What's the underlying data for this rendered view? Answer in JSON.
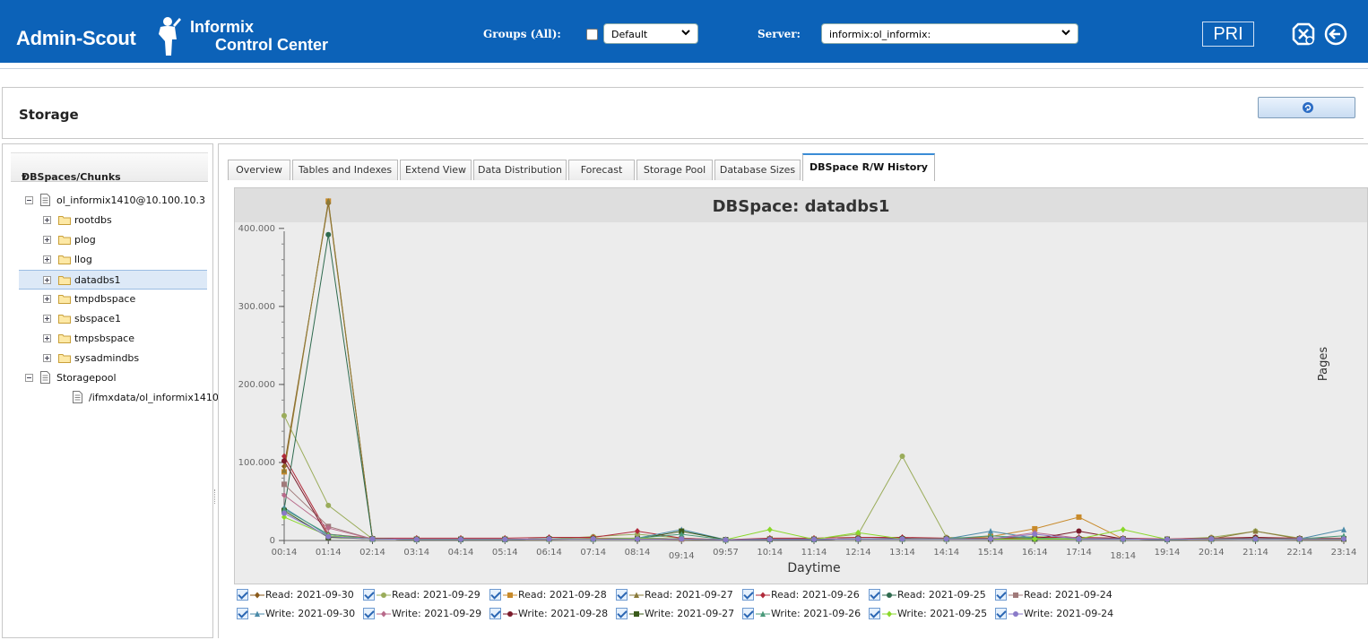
{
  "header": {
    "brand": "Admin-Scout",
    "product_line1": "Informix",
    "product_line2": "Control Center",
    "groups_label": "Groups (All):",
    "groups_value": "Default",
    "server_label": "Server:",
    "server_value": "informix:ol_informix:",
    "role_badge": "PRI",
    "accent_color": "#0c62b8"
  },
  "page": {
    "title": "Storage"
  },
  "tree": {
    "header": "DBSpaces/Chunks",
    "items": [
      {
        "label": "ol_informix1410@10.100.10.3",
        "level": 0,
        "toggle": "minus",
        "icon": "document-icon"
      },
      {
        "label": "rootdbs",
        "level": 1,
        "toggle": "plus",
        "icon": "folder-icon"
      },
      {
        "label": "plog",
        "level": 1,
        "toggle": "plus",
        "icon": "folder-icon"
      },
      {
        "label": "llog",
        "level": 1,
        "toggle": "plus",
        "icon": "folder-icon"
      },
      {
        "label": "datadbs1",
        "level": 1,
        "toggle": "plus",
        "icon": "folder-icon",
        "selected": true
      },
      {
        "label": "tmpdbspace",
        "level": 1,
        "toggle": "plus",
        "icon": "folder-icon"
      },
      {
        "label": "sbspace1",
        "level": 1,
        "toggle": "plus",
        "icon": "folder-icon"
      },
      {
        "label": "tmpsbspace",
        "level": 1,
        "toggle": "plus",
        "icon": "folder-icon"
      },
      {
        "label": "sysadmindbs",
        "level": 1,
        "toggle": "plus",
        "icon": "folder-icon"
      },
      {
        "label": "Storagepool",
        "level": 0,
        "toggle": "minus",
        "icon": "document-icon"
      },
      {
        "label": "/ifmxdata/ol_informix1410",
        "level": 2,
        "toggle": "none",
        "icon": "document-icon"
      }
    ]
  },
  "tabs": [
    {
      "label": "Overview"
    },
    {
      "label": "Tables and Indexes"
    },
    {
      "label": "Extend View"
    },
    {
      "label": "Data Distribution"
    },
    {
      "label": "Forecast"
    },
    {
      "label": "Storage Pool"
    },
    {
      "label": "Database Sizes"
    },
    {
      "label": "DBSpace R/W History",
      "active": true
    }
  ],
  "chart_data": {
    "type": "line",
    "title": "DBSpace: datadbs1",
    "xlabel": "Daytime",
    "ylabel": "Pages",
    "ylim": [
      0,
      440000
    ],
    "yticks": [
      0,
      100000,
      200000,
      300000,
      400000
    ],
    "ytick_labels": [
      "0",
      "100.000",
      "200.000",
      "300.000",
      "400.000"
    ],
    "categories": [
      "00:14",
      "01:14",
      "02:14",
      "03:14",
      "04:14",
      "05:14",
      "06:14",
      "07:14",
      "08:14",
      "09:14",
      "09:57",
      "10:14",
      "11:14",
      "12:14",
      "13:14",
      "14:14",
      "15:14",
      "16:14",
      "17:14",
      "18:14",
      "19:14",
      "20:14",
      "21:14",
      "22:14",
      "23:14"
    ],
    "grid": false,
    "legend_position": "bottom",
    "series": [
      {
        "name": "Read: 2021-09-30",
        "color": "#8a5a1a",
        "marker": "diamond",
        "values": [
          95000,
          432000,
          2000,
          1500,
          1500,
          1500,
          1500,
          2000,
          2000,
          1500,
          1000,
          1500,
          1500,
          2000,
          2000,
          2000,
          2000,
          2000,
          2000,
          2000,
          1500,
          1500,
          2000,
          1500,
          1500
        ]
      },
      {
        "name": "Read: 2021-09-29",
        "color": "#9aac5a",
        "marker": "circle",
        "values": [
          160000,
          45000,
          2000,
          1500,
          1500,
          1500,
          2000,
          5000,
          8000,
          3000,
          1000,
          2000,
          2000,
          8000,
          108000,
          4000,
          3000,
          5000,
          3000,
          2000,
          1500,
          4000,
          12000,
          3000,
          2000
        ]
      },
      {
        "name": "Read: 2021-09-28",
        "color": "#c88a2a",
        "marker": "square",
        "values": [
          88000,
          435000,
          2000,
          1500,
          1500,
          1500,
          2000,
          3000,
          3000,
          2000,
          1000,
          2000,
          1500,
          2000,
          2000,
          2000,
          5000,
          15000,
          30000,
          2000,
          1500,
          2000,
          3000,
          2000,
          2000
        ]
      },
      {
        "name": "Read: 2021-09-27",
        "color": "#8a7a3a",
        "marker": "triangle",
        "values": [
          90000,
          435000,
          2000,
          1500,
          1500,
          1500,
          2000,
          2000,
          3000,
          2000,
          1000,
          1500,
          1500,
          2000,
          2000,
          2000,
          2000,
          2000,
          2000,
          2000,
          1500,
          2000,
          12000,
          2000,
          2000
        ]
      },
      {
        "name": "Read: 2021-09-26",
        "color": "#b02a3a",
        "marker": "diamond",
        "values": [
          108000,
          8000,
          3000,
          3000,
          3000,
          3000,
          4000,
          4000,
          12000,
          3000,
          1000,
          3000,
          3000,
          4000,
          4000,
          3000,
          3000,
          4000,
          4000,
          3000,
          2000,
          3000,
          4000,
          3000,
          3000
        ]
      },
      {
        "name": "Read: 2021-09-25",
        "color": "#2e6a4e",
        "marker": "circle",
        "values": [
          40000,
          392000,
          2000,
          1500,
          1500,
          1500,
          2000,
          2000,
          2000,
          2000,
          1000,
          1500,
          1500,
          2000,
          2000,
          2000,
          2000,
          2000,
          2000,
          2000,
          1500,
          2000,
          2000,
          2000,
          2000
        ]
      },
      {
        "name": "Read: 2021-09-24",
        "color": "#a07a7a",
        "marker": "square",
        "values": [
          72000,
          18000,
          2000,
          1500,
          1500,
          1500,
          2000,
          2000,
          3000,
          2000,
          1000,
          1500,
          1500,
          2000,
          2000,
          2000,
          2000,
          2000,
          2000,
          2000,
          1500,
          2000,
          2000,
          2000,
          2000
        ]
      },
      {
        "name": "Write: 2021-09-30",
        "color": "#4a8aa8",
        "marker": "triangle",
        "values": [
          42000,
          6000,
          2000,
          1500,
          1500,
          1500,
          2000,
          2000,
          3000,
          14000,
          1000,
          1500,
          1500,
          2000,
          2000,
          2000,
          12000,
          3000,
          2000,
          2000,
          1500,
          2000,
          2000,
          2000,
          14000
        ]
      },
      {
        "name": "Write: 2021-09-29",
        "color": "#b86a8a",
        "marker": "diamond",
        "values": [
          58000,
          16000,
          2000,
          1500,
          1500,
          1500,
          2000,
          2000,
          3000,
          2000,
          1000,
          1500,
          1500,
          2000,
          2000,
          2000,
          2000,
          10000,
          3000,
          2000,
          1500,
          2000,
          3000,
          2000,
          2000
        ]
      },
      {
        "name": "Write: 2021-09-28",
        "color": "#7a1a2a",
        "marker": "circle",
        "values": [
          102000,
          5000,
          2000,
          1500,
          1500,
          1500,
          2000,
          2000,
          2000,
          2000,
          1000,
          1500,
          1500,
          2000,
          3000,
          2000,
          2000,
          2000,
          12000,
          2000,
          1500,
          2000,
          4000,
          2000,
          2000
        ]
      },
      {
        "name": "Write: 2021-09-27",
        "color": "#3a5a1a",
        "marker": "square",
        "values": [
          38000,
          4000,
          2000,
          1500,
          1500,
          1500,
          2000,
          2000,
          2000,
          12000,
          1000,
          1500,
          1500,
          2000,
          2000,
          2000,
          2000,
          2000,
          2000,
          2000,
          1500,
          2000,
          2000,
          2000,
          2000
        ]
      },
      {
        "name": "Write: 2021-09-26",
        "color": "#4a9a7a",
        "marker": "triangle",
        "values": [
          40000,
          8000,
          2000,
          1500,
          1500,
          1500,
          2000,
          2000,
          3000,
          8000,
          1000,
          1500,
          1500,
          2000,
          2000,
          2000,
          6000,
          3000,
          2000,
          2000,
          1500,
          2000,
          2000,
          2000,
          6000
        ]
      },
      {
        "name": "Write: 2021-09-25",
        "color": "#8ad82a",
        "marker": "diamond",
        "values": [
          30000,
          6000,
          2000,
          1500,
          1500,
          1500,
          2000,
          2000,
          3000,
          2000,
          1000,
          14000,
          1500,
          10000,
          2000,
          2000,
          2000,
          2000,
          2000,
          14000,
          1500,
          2000,
          2000,
          2000,
          2000
        ]
      },
      {
        "name": "Write: 2021-09-24",
        "color": "#8a7ac8",
        "marker": "circle",
        "values": [
          35000,
          5000,
          2000,
          1500,
          1500,
          1500,
          2000,
          2000,
          2000,
          2000,
          1000,
          1500,
          1500,
          2000,
          2000,
          2000,
          2000,
          8000,
          2000,
          2000,
          1500,
          2000,
          2000,
          2000,
          2000
        ]
      }
    ]
  }
}
